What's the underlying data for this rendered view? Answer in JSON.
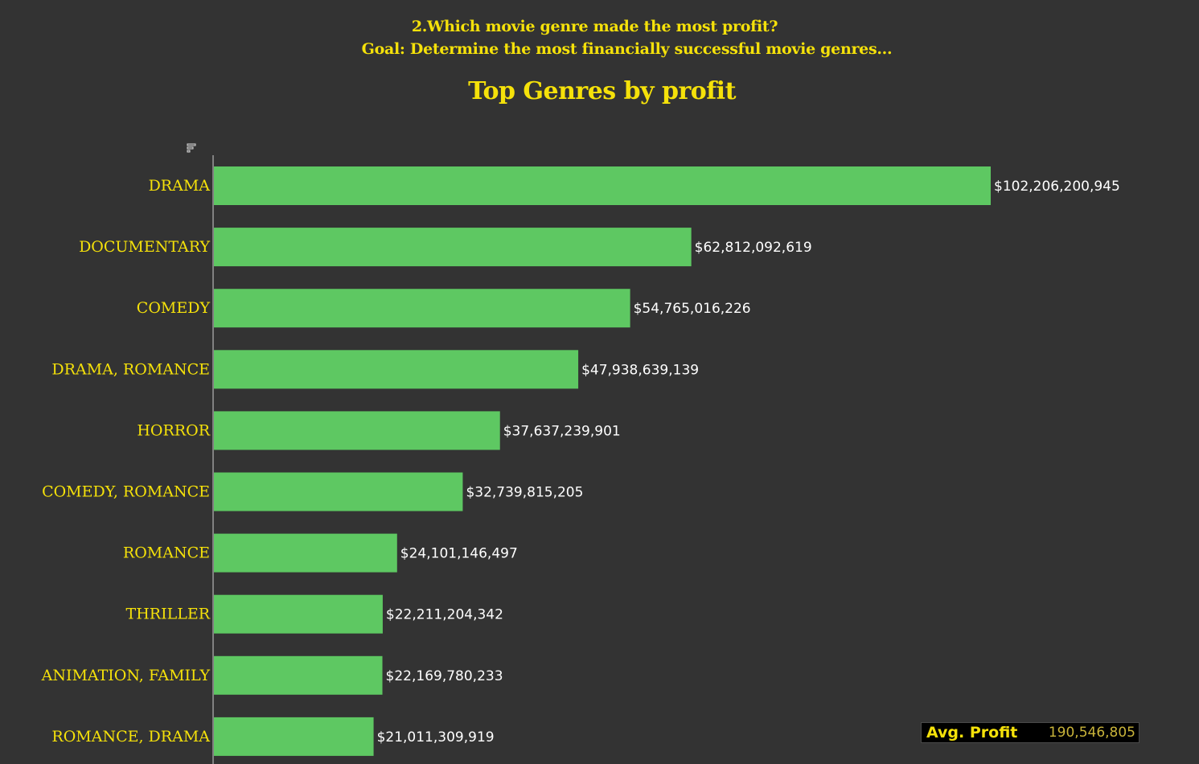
{
  "header": {
    "question": "2.Which movie genre made the most profit?",
    "goal": "Goal: Determine the most financially successful movie genres..."
  },
  "colors": {
    "background": "#333333",
    "bar": "#5ec862",
    "accent": "#f5e10a",
    "value_text": "#ffffff"
  },
  "icons": {
    "sort": "sort-descending-icon"
  },
  "chart_data": {
    "type": "bar",
    "orientation": "horizontal",
    "title": "Top Genres by profit",
    "categories": [
      "Drama",
      "Documentary",
      "Comedy",
      "Drama, Romance",
      "Horror",
      "Comedy, Romance",
      "Romance",
      "Thriller",
      "Animation, Family",
      "Romance, Drama"
    ],
    "values": [
      102206200945,
      62812092619,
      54765016226,
      47938639139,
      37637239901,
      32739815205,
      24101146497,
      22211204342,
      22169780233,
      21011309919
    ],
    "value_labels": [
      "$102,206,200,945",
      "$62,812,092,619",
      "$54,765,016,226",
      "$47,938,639,139",
      "$37,637,239,901",
      "$32,739,815,205",
      "$24,101,146,497",
      "$22,211,204,342",
      "$22,169,780,233",
      "$21,011,309,919"
    ],
    "xlabel": "",
    "ylabel": "",
    "grid": false,
    "legend": "none"
  },
  "summary": {
    "label": "Avg. Profit",
    "value": "190,546,805"
  }
}
